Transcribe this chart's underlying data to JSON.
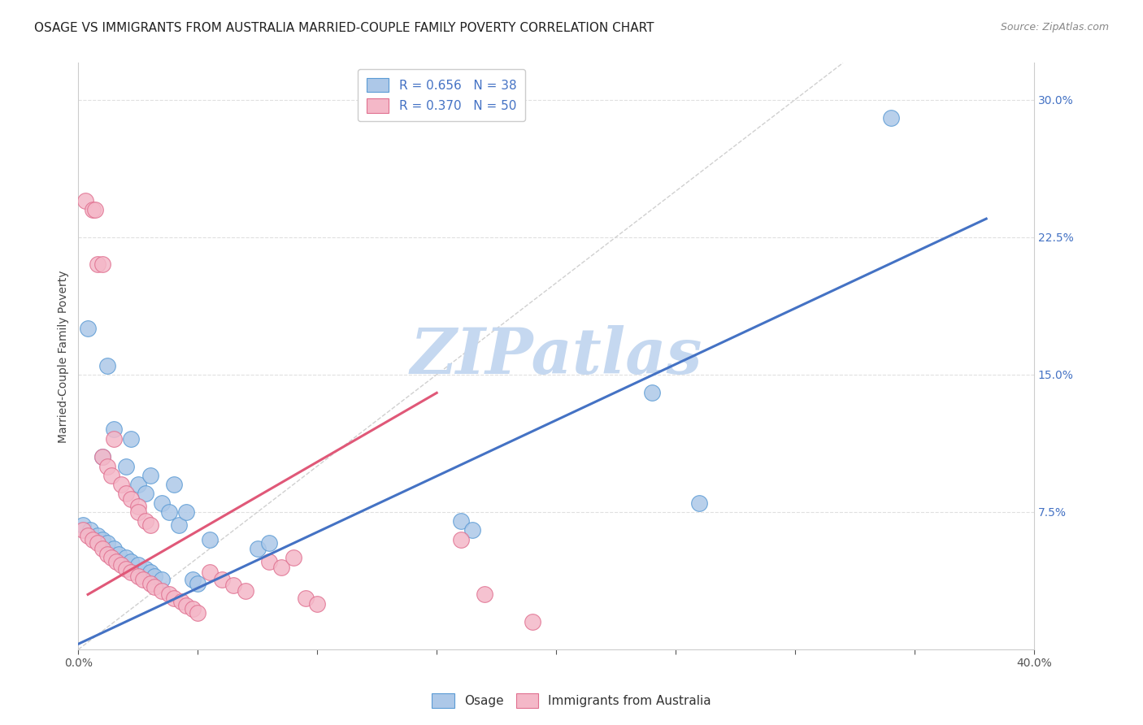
{
  "title": "OSAGE VS IMMIGRANTS FROM AUSTRALIA MARRIED-COUPLE FAMILY POVERTY CORRELATION CHART",
  "source": "Source: ZipAtlas.com",
  "ylabel": "Married-Couple Family Poverty",
  "xlim": [
    0,
    0.4
  ],
  "ylim": [
    0,
    0.32
  ],
  "blue_R": 0.656,
  "blue_N": 38,
  "pink_R": 0.37,
  "pink_N": 50,
  "blue_color": "#adc8e8",
  "blue_edge_color": "#5b9bd5",
  "blue_line_color": "#4472c4",
  "pink_color": "#f4b8c8",
  "pink_edge_color": "#e07090",
  "pink_line_color": "#e05878",
  "diag_color": "#d0d0d0",
  "grid_color": "#e0e0e0",
  "background_color": "#ffffff",
  "watermark": "ZIPatlas",
  "watermark_color": "#c5d8f0",
  "blue_scatter": [
    [
      0.004,
      0.175
    ],
    [
      0.012,
      0.155
    ],
    [
      0.01,
      0.105
    ],
    [
      0.015,
      0.12
    ],
    [
      0.02,
      0.1
    ],
    [
      0.022,
      0.115
    ],
    [
      0.025,
      0.09
    ],
    [
      0.028,
      0.085
    ],
    [
      0.03,
      0.095
    ],
    [
      0.035,
      0.08
    ],
    [
      0.038,
      0.075
    ],
    [
      0.04,
      0.09
    ],
    [
      0.042,
      0.068
    ],
    [
      0.045,
      0.075
    ],
    [
      0.002,
      0.068
    ],
    [
      0.005,
      0.065
    ],
    [
      0.008,
      0.062
    ],
    [
      0.01,
      0.06
    ],
    [
      0.012,
      0.058
    ],
    [
      0.015,
      0.055
    ],
    [
      0.017,
      0.052
    ],
    [
      0.02,
      0.05
    ],
    [
      0.022,
      0.048
    ],
    [
      0.025,
      0.046
    ],
    [
      0.028,
      0.044
    ],
    [
      0.03,
      0.042
    ],
    [
      0.032,
      0.04
    ],
    [
      0.035,
      0.038
    ],
    [
      0.048,
      0.038
    ],
    [
      0.05,
      0.036
    ],
    [
      0.055,
      0.06
    ],
    [
      0.075,
      0.055
    ],
    [
      0.08,
      0.058
    ],
    [
      0.16,
      0.07
    ],
    [
      0.165,
      0.065
    ],
    [
      0.24,
      0.14
    ],
    [
      0.26,
      0.08
    ],
    [
      0.34,
      0.29
    ]
  ],
  "pink_scatter": [
    [
      0.003,
      0.245
    ],
    [
      0.006,
      0.24
    ],
    [
      0.007,
      0.24
    ],
    [
      0.008,
      0.21
    ],
    [
      0.01,
      0.21
    ],
    [
      0.015,
      0.115
    ],
    [
      0.01,
      0.105
    ],
    [
      0.012,
      0.1
    ],
    [
      0.014,
      0.095
    ],
    [
      0.018,
      0.09
    ],
    [
      0.02,
      0.085
    ],
    [
      0.022,
      0.082
    ],
    [
      0.025,
      0.078
    ],
    [
      0.025,
      0.075
    ],
    [
      0.028,
      0.07
    ],
    [
      0.03,
      0.068
    ],
    [
      0.002,
      0.065
    ],
    [
      0.004,
      0.062
    ],
    [
      0.006,
      0.06
    ],
    [
      0.008,
      0.058
    ],
    [
      0.01,
      0.055
    ],
    [
      0.012,
      0.052
    ],
    [
      0.014,
      0.05
    ],
    [
      0.016,
      0.048
    ],
    [
      0.018,
      0.046
    ],
    [
      0.02,
      0.044
    ],
    [
      0.022,
      0.042
    ],
    [
      0.025,
      0.04
    ],
    [
      0.027,
      0.038
    ],
    [
      0.03,
      0.036
    ],
    [
      0.032,
      0.034
    ],
    [
      0.035,
      0.032
    ],
    [
      0.038,
      0.03
    ],
    [
      0.04,
      0.028
    ],
    [
      0.043,
      0.026
    ],
    [
      0.045,
      0.024
    ],
    [
      0.048,
      0.022
    ],
    [
      0.05,
      0.02
    ],
    [
      0.055,
      0.042
    ],
    [
      0.06,
      0.038
    ],
    [
      0.065,
      0.035
    ],
    [
      0.07,
      0.032
    ],
    [
      0.08,
      0.048
    ],
    [
      0.085,
      0.045
    ],
    [
      0.09,
      0.05
    ],
    [
      0.095,
      0.028
    ],
    [
      0.1,
      0.025
    ],
    [
      0.16,
      0.06
    ],
    [
      0.17,
      0.03
    ],
    [
      0.19,
      0.015
    ]
  ],
  "blue_line_pts": [
    [
      0.0,
      0.003
    ],
    [
      0.38,
      0.235
    ]
  ],
  "pink_line_pts": [
    [
      0.004,
      0.03
    ],
    [
      0.15,
      0.14
    ]
  ],
  "diag_line_pts": [
    [
      0.0,
      0.0
    ],
    [
      0.32,
      0.32
    ]
  ],
  "title_fontsize": 11,
  "axis_label_fontsize": 10,
  "tick_fontsize": 10,
  "legend_fontsize": 11
}
